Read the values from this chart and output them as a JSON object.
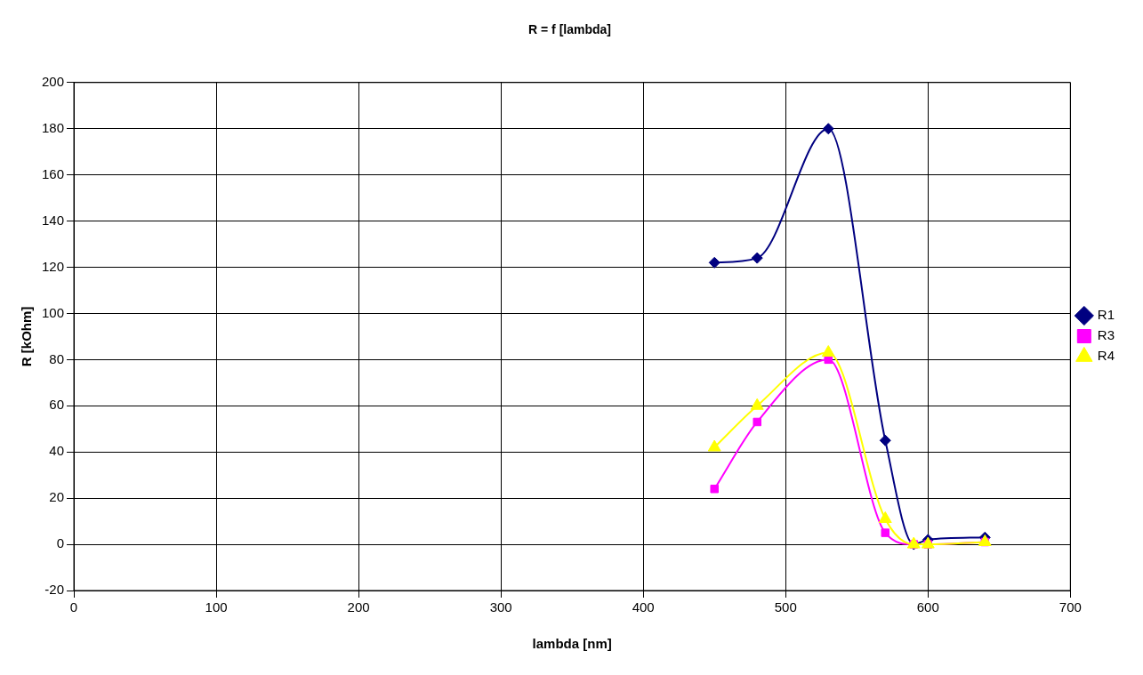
{
  "chart_data": {
    "type": "line",
    "title": "R = f [lambda]",
    "xlabel": "lambda [nm]",
    "ylabel": "R [kOhm]",
    "x": [
      450,
      480,
      530,
      570,
      590,
      600,
      640
    ],
    "series": [
      {
        "name": "R1",
        "color": "#000080",
        "marker": "diamond",
        "values": [
          122,
          124,
          180,
          45,
          0,
          2,
          3
        ]
      },
      {
        "name": "R3",
        "color": "#ff00ff",
        "marker": "square",
        "values": [
          24,
          53,
          80,
          5,
          0,
          0,
          1
        ]
      },
      {
        "name": "R4",
        "color": "#ffff00",
        "marker": "triangle",
        "values": [
          42,
          60,
          83,
          11,
          0,
          0,
          1
        ]
      }
    ],
    "xlim": [
      0,
      700
    ],
    "xticks": [
      0,
      100,
      200,
      300,
      400,
      500,
      600,
      700
    ],
    "ylim": [
      -20,
      200
    ],
    "yticks": [
      -20,
      0,
      20,
      40,
      60,
      80,
      100,
      120,
      140,
      160,
      180,
      200
    ],
    "grid": true,
    "legend": "right",
    "line_style": "solid"
  }
}
